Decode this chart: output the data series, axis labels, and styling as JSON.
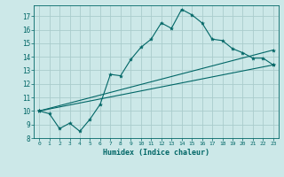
{
  "xlabel": "Humidex (Indice chaleur)",
  "background_color": "#cce8e8",
  "grid_color": "#aacccc",
  "line_color": "#006666",
  "xlim": [
    -0.5,
    23.5
  ],
  "ylim": [
    8,
    17.8
  ],
  "yticks": [
    8,
    9,
    10,
    11,
    12,
    13,
    14,
    15,
    16,
    17
  ],
  "xticks": [
    0,
    1,
    2,
    3,
    4,
    5,
    6,
    7,
    8,
    9,
    10,
    11,
    12,
    13,
    14,
    15,
    16,
    17,
    18,
    19,
    20,
    21,
    22,
    23
  ],
  "series0": {
    "x": [
      0,
      1,
      2,
      3,
      4,
      5,
      6,
      7,
      8,
      9,
      10,
      11,
      12,
      13,
      14,
      15,
      16,
      17,
      18,
      19,
      20,
      21,
      22,
      23
    ],
    "y": [
      10,
      9.8,
      8.7,
      9.1,
      8.5,
      9.4,
      10.5,
      12.7,
      12.6,
      13.8,
      14.7,
      15.3,
      16.5,
      16.1,
      17.5,
      17.1,
      16.5,
      15.3,
      15.2,
      14.6,
      14.3,
      13.9,
      13.9,
      13.4
    ]
  },
  "series1": {
    "x": [
      0,
      23
    ],
    "y": [
      10,
      13.4
    ]
  },
  "series2": {
    "x": [
      0,
      23
    ],
    "y": [
      10,
      14.5
    ]
  }
}
